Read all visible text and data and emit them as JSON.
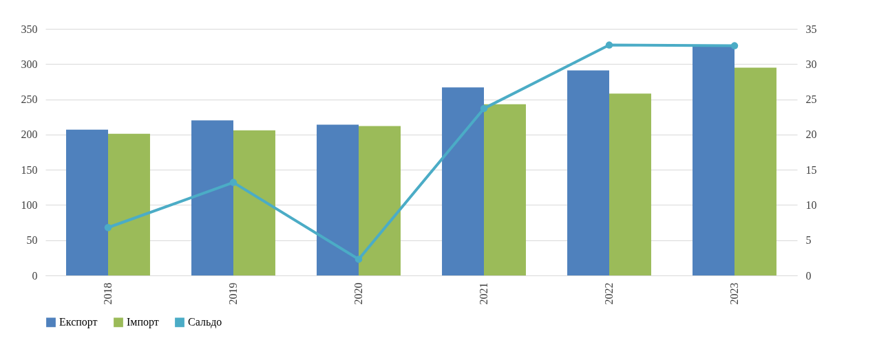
{
  "chart_data": {
    "type": "bar",
    "categories": [
      "2018",
      "2019",
      "2020",
      "2021",
      "2022",
      "2023"
    ],
    "series": [
      {
        "name": "Експорт",
        "color": "#4f81bd",
        "values": [
          207,
          220,
          214,
          267,
          291,
          327
        ]
      },
      {
        "name": "Імпорт",
        "color": "#9bbb59",
        "values": [
          201,
          206,
          212,
          243,
          258,
          295
        ]
      },
      {
        "name": "Сальдо",
        "type": "line",
        "axis": "y2",
        "color": "#4bacc6",
        "values": [
          6.8,
          13.2,
          2.3,
          23.7,
          32.7,
          32.6
        ]
      }
    ],
    "ylim": [
      0,
      350
    ],
    "yticks": [
      0,
      50,
      100,
      150,
      200,
      250,
      300,
      350
    ],
    "y2lim": [
      0,
      35
    ],
    "y2ticks": [
      0,
      5,
      10,
      15,
      20,
      25,
      30,
      35
    ],
    "grid": "y",
    "legend": "bottom",
    "marker": "circle",
    "line_style": "solid"
  }
}
